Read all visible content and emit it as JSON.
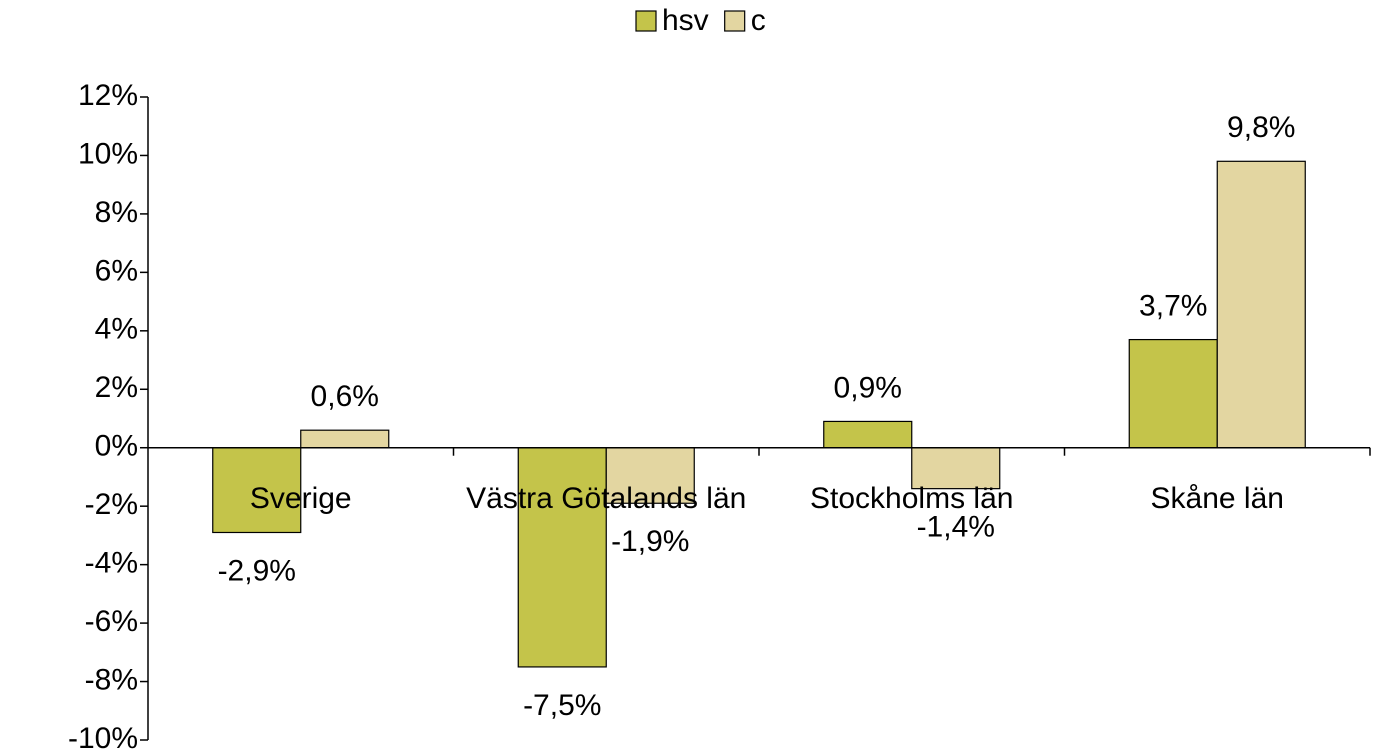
{
  "chart_data": {
    "type": "bar",
    "categories": [
      "Sverige",
      "Västra Götalands län",
      "Stockholms län",
      "Skåne län"
    ],
    "series": [
      {
        "name": "hsv",
        "color": "#c4c44a",
        "values": [
          -2.9,
          -7.5,
          0.9,
          3.7
        ],
        "value_labels": [
          "-2,9%",
          "-7,5%",
          "0,9%",
          "3,7%"
        ]
      },
      {
        "name": "c",
        "color": "#e3d6a1",
        "values": [
          0.6,
          -1.9,
          -1.4,
          9.8
        ],
        "value_labels": [
          "0,6%",
          "-1,9%",
          "-1,4%",
          "9,8%"
        ]
      }
    ],
    "ylim": [
      -10,
      12
    ],
    "yticks": [
      {
        "value": -10,
        "label": "-10%"
      },
      {
        "value": -8,
        "label": "-8%"
      },
      {
        "value": -6,
        "label": "-6%"
      },
      {
        "value": -4,
        "label": "-4%"
      },
      {
        "value": -2,
        "label": "-2%"
      },
      {
        "value": 0,
        "label": "0%"
      },
      {
        "value": 2,
        "label": "2%"
      },
      {
        "value": 4,
        "label": "4%"
      },
      {
        "value": 6,
        "label": "6%"
      },
      {
        "value": 8,
        "label": "8%"
      },
      {
        "value": 10,
        "label": "10%"
      },
      {
        "value": 12,
        "label": "12%"
      }
    ],
    "legend": "top"
  }
}
